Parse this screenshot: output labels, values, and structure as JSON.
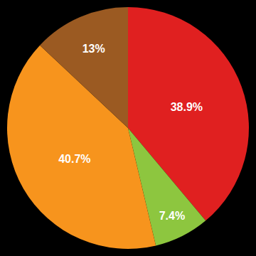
{
  "chart_data": {
    "type": "pie",
    "values": [
      38.9,
      7.4,
      40.7,
      13.0
    ],
    "value_labels": [
      "38.9%",
      "7.4%",
      "40.7%",
      "13%"
    ],
    "colors": [
      "#e02020",
      "#8dc63f",
      "#f7941d",
      "#9b5a22"
    ],
    "data_labels": true
  }
}
